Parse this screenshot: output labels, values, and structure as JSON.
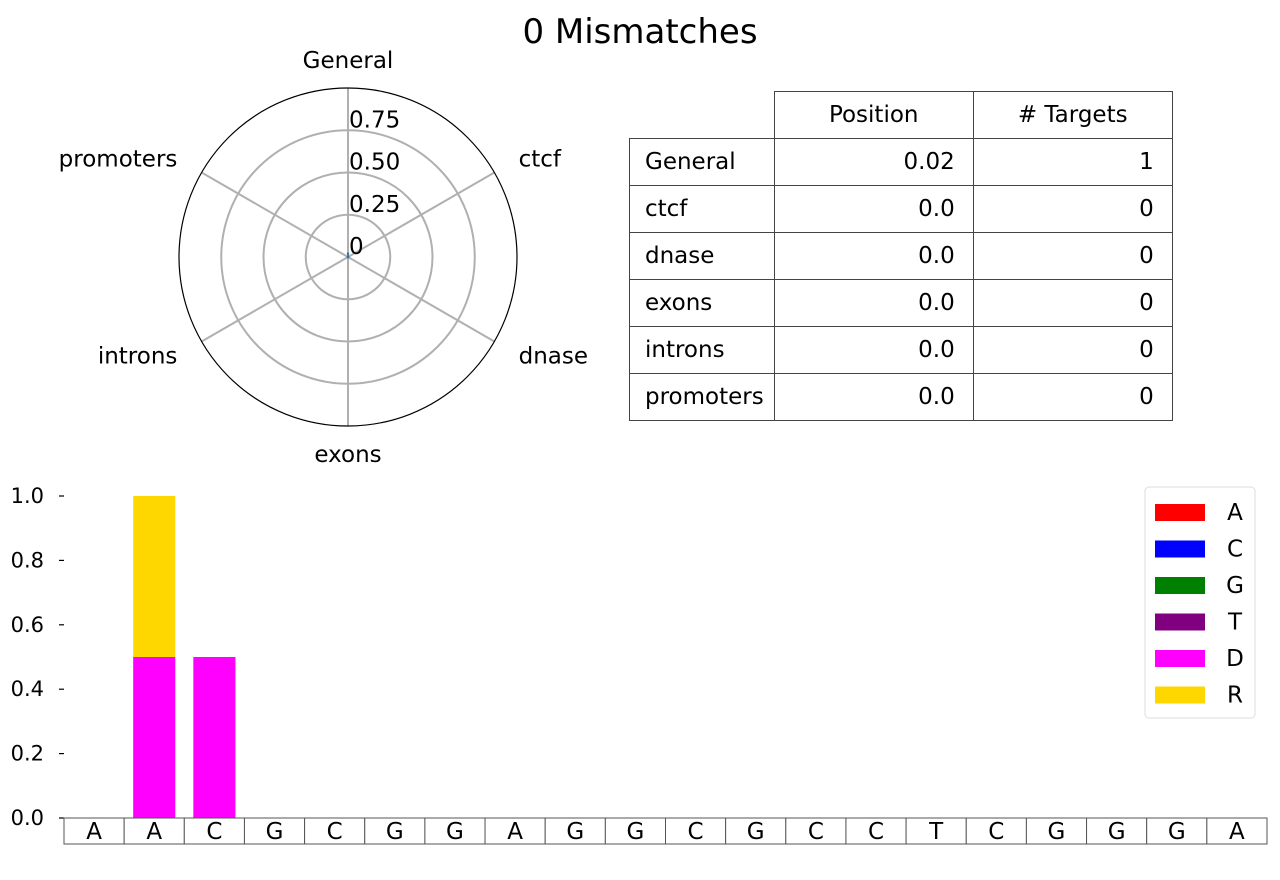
{
  "title": "0 Mismatches",
  "chart_data": [
    {
      "type": "radar",
      "categories": [
        "General",
        "ctcf",
        "dnase",
        "exons",
        "introns",
        "promoters"
      ],
      "values": [
        0.02,
        0.0,
        0.0,
        0.0,
        0.0,
        0.0
      ],
      "rticks": [
        "0",
        "0.25",
        "0.50",
        "0.75"
      ],
      "rtick_values": [
        0,
        0.25,
        0.5,
        0.75
      ],
      "rlim": [
        0,
        1.0
      ],
      "line_color": "#1f77b4",
      "grid": true
    },
    {
      "type": "table",
      "columns": [
        "Position",
        "# Targets"
      ],
      "rows": [
        {
          "label": "General",
          "position": "0.02",
          "targets": "1"
        },
        {
          "label": "ctcf",
          "position": "0.0",
          "targets": "0"
        },
        {
          "label": "dnase",
          "position": "0.0",
          "targets": "0"
        },
        {
          "label": "exons",
          "position": "0.0",
          "targets": "0"
        },
        {
          "label": "introns",
          "position": "0.0",
          "targets": "0"
        },
        {
          "label": "promoters",
          "position": "0.0",
          "targets": "0"
        }
      ]
    },
    {
      "type": "bar",
      "stacked": true,
      "categories": [
        "A",
        "A",
        "C",
        "G",
        "C",
        "G",
        "G",
        "A",
        "G",
        "G",
        "C",
        "G",
        "C",
        "C",
        "T",
        "C",
        "G",
        "G",
        "G",
        "A"
      ],
      "series": [
        {
          "name": "A",
          "color": "#ff0000",
          "values": [
            0,
            0,
            0,
            0,
            0,
            0,
            0,
            0,
            0,
            0,
            0,
            0,
            0,
            0,
            0,
            0,
            0,
            0,
            0,
            0
          ]
        },
        {
          "name": "C",
          "color": "#0000ff",
          "values": [
            0,
            0,
            0,
            0,
            0,
            0,
            0,
            0,
            0,
            0,
            0,
            0,
            0,
            0,
            0,
            0,
            0,
            0,
            0,
            0
          ]
        },
        {
          "name": "G",
          "color": "#008000",
          "values": [
            0,
            0,
            0,
            0,
            0,
            0,
            0,
            0,
            0,
            0,
            0,
            0,
            0,
            0,
            0,
            0,
            0,
            0,
            0,
            0
          ]
        },
        {
          "name": "T",
          "color": "#800080",
          "values": [
            0,
            0,
            0,
            0,
            0,
            0,
            0,
            0,
            0,
            0,
            0,
            0,
            0,
            0,
            0,
            0,
            0,
            0,
            0,
            0
          ]
        },
        {
          "name": "D",
          "color": "#ff00ff",
          "values": [
            0,
            0.5,
            0.5,
            0,
            0,
            0,
            0,
            0,
            0,
            0,
            0,
            0,
            0,
            0,
            0,
            0,
            0,
            0,
            0,
            0
          ]
        },
        {
          "name": "R",
          "color": "#ffd700",
          "values": [
            0,
            0.5,
            0,
            0,
            0,
            0,
            0,
            0,
            0,
            0,
            0,
            0,
            0,
            0,
            0,
            0,
            0,
            0,
            0,
            0
          ]
        }
      ],
      "ylim": [
        0,
        1.0
      ],
      "yticks": [
        "0.0",
        "0.2",
        "0.4",
        "0.6",
        "0.8",
        "1.0"
      ],
      "legend_position": "top-right",
      "grid": false
    }
  ]
}
